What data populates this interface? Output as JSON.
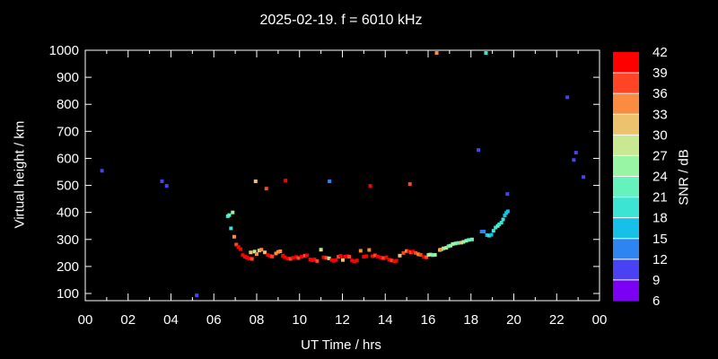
{
  "title": "2025-02-19. f = 6010 kHz",
  "colors": {
    "background": "#000000",
    "foreground": "#ffffff"
  },
  "axes": {
    "x": {
      "label": "UT Time / hrs",
      "tick_hours": [
        0,
        2,
        4,
        6,
        8,
        10,
        12,
        14,
        16,
        18,
        20,
        22,
        24
      ],
      "tick_labels": [
        "00",
        "02",
        "04",
        "06",
        "08",
        "10",
        "12",
        "14",
        "16",
        "18",
        "20",
        "22",
        "00"
      ],
      "minor_hours": [
        1,
        3,
        5,
        7,
        9,
        11,
        13,
        15,
        17,
        19,
        21,
        23
      ],
      "range_hours": [
        0,
        24
      ]
    },
    "y": {
      "label": "Virtual height / km",
      "tick_values": [
        100,
        200,
        300,
        400,
        500,
        600,
        700,
        800,
        900,
        1000
      ],
      "tick_labels": [
        "100",
        "200",
        "300",
        "400",
        "500",
        "600",
        "700",
        "800",
        "900",
        "1000"
      ],
      "range_km": [
        75,
        1000
      ]
    }
  },
  "colorbar": {
    "label": "SNR / dB",
    "min": 6,
    "max": 42,
    "step": 3,
    "tick_labels_top_to_bottom": [
      "42",
      "39",
      "36",
      "33",
      "30",
      "27",
      "24",
      "21",
      "18",
      "15",
      "12",
      "9",
      "6"
    ],
    "colors_bottom_to_top": [
      "#7c00f4",
      "#4a42f2",
      "#2e85f2",
      "#17c0e8",
      "#3ce5d3",
      "#65f2bd",
      "#97f5a3",
      "#c8e992",
      "#edc26c",
      "#fb8c3f",
      "#ff4526",
      "#ff0000"
    ]
  },
  "chart_data": {
    "type": "scatter",
    "title": "2025-02-19. f = 6010 kHz",
    "xlabel": "UT Time / hrs",
    "ylabel": "Virtual height / km",
    "xlim_hours": [
      0,
      24
    ],
    "ylim_km": [
      75,
      1000
    ],
    "color_by": "snr_db",
    "snr_color_min": 6,
    "snr_color_max": 42,
    "legend_position": "right-colorbar",
    "grid": false,
    "points_time_height_snr": [
      [
        0.78,
        554,
        10
      ],
      [
        3.58,
        515,
        10
      ],
      [
        3.8,
        498,
        10
      ],
      [
        5.2,
        93,
        10
      ],
      [
        7.95,
        515,
        31
      ],
      [
        8.45,
        488,
        38
      ],
      [
        9.35,
        518,
        41
      ],
      [
        11.4,
        515,
        13
      ],
      [
        13.3,
        498,
        41
      ],
      [
        15.15,
        505,
        38
      ],
      [
        16.4,
        990,
        34
      ],
      [
        18.7,
        990,
        19
      ],
      [
        18.35,
        631,
        10
      ],
      [
        19.7,
        468,
        10
      ],
      [
        22.5,
        826,
        10
      ],
      [
        22.8,
        594,
        10
      ],
      [
        22.9,
        621,
        10
      ],
      [
        23.25,
        531,
        10
      ],
      [
        6.65,
        386,
        19
      ],
      [
        6.72,
        390,
        22
      ],
      [
        6.88,
        400,
        25
      ],
      [
        6.8,
        341,
        19
      ],
      [
        6.95,
        310,
        34
      ],
      [
        7.05,
        281,
        38
      ],
      [
        7.15,
        272,
        41
      ],
      [
        7.25,
        264,
        41
      ],
      [
        7.35,
        242,
        41
      ],
      [
        7.45,
        236,
        41
      ],
      [
        7.55,
        233,
        41
      ],
      [
        7.65,
        229,
        41
      ],
      [
        7.72,
        252,
        31
      ],
      [
        7.78,
        228,
        38
      ],
      [
        7.9,
        255,
        28
      ],
      [
        8.0,
        246,
        34
      ],
      [
        8.12,
        259,
        31
      ],
      [
        8.22,
        262,
        34
      ],
      [
        8.38,
        252,
        31
      ],
      [
        8.52,
        242,
        41
      ],
      [
        8.62,
        239,
        41
      ],
      [
        8.72,
        237,
        38
      ],
      [
        8.9,
        248,
        34
      ],
      [
        9.0,
        254,
        34
      ],
      [
        9.1,
        256,
        34
      ],
      [
        9.22,
        240,
        41
      ],
      [
        9.32,
        234,
        41
      ],
      [
        9.45,
        229,
        41
      ],
      [
        9.58,
        228,
        38
      ],
      [
        9.7,
        232,
        41
      ],
      [
        9.85,
        235,
        41
      ],
      [
        9.95,
        231,
        38
      ],
      [
        10.1,
        236,
        41
      ],
      [
        10.25,
        240,
        38
      ],
      [
        10.35,
        241,
        41
      ],
      [
        10.5,
        226,
        41
      ],
      [
        10.6,
        223,
        41
      ],
      [
        10.7,
        226,
        41
      ],
      [
        10.82,
        220,
        38
      ],
      [
        11.0,
        262,
        28
      ],
      [
        11.12,
        234,
        41
      ],
      [
        11.25,
        232,
        38
      ],
      [
        11.38,
        230,
        25
      ],
      [
        11.5,
        224,
        41
      ],
      [
        11.6,
        221,
        41
      ],
      [
        11.7,
        224,
        41
      ],
      [
        11.82,
        236,
        38
      ],
      [
        11.92,
        239,
        41
      ],
      [
        12.02,
        224,
        31
      ],
      [
        12.12,
        236,
        41
      ],
      [
        12.22,
        238,
        41
      ],
      [
        12.32,
        236,
        38
      ],
      [
        12.45,
        222,
        41
      ],
      [
        12.55,
        219,
        41
      ],
      [
        12.68,
        222,
        41
      ],
      [
        12.85,
        258,
        34
      ],
      [
        13.0,
        236,
        41
      ],
      [
        13.12,
        238,
        41
      ],
      [
        13.25,
        261,
        34
      ],
      [
        13.4,
        238,
        41
      ],
      [
        13.52,
        241,
        38
      ],
      [
        13.65,
        237,
        41
      ],
      [
        13.8,
        233,
        41
      ],
      [
        13.92,
        231,
        38
      ],
      [
        14.05,
        234,
        41
      ],
      [
        14.18,
        225,
        41
      ],
      [
        14.3,
        222,
        38
      ],
      [
        14.42,
        219,
        41
      ],
      [
        14.52,
        221,
        41
      ],
      [
        14.68,
        240,
        31
      ],
      [
        14.85,
        250,
        38
      ],
      [
        15.0,
        257,
        34
      ],
      [
        15.1,
        255,
        41
      ],
      [
        15.2,
        252,
        38
      ],
      [
        15.3,
        255,
        41
      ],
      [
        15.42,
        250,
        38
      ],
      [
        15.55,
        245,
        34
      ],
      [
        15.65,
        243,
        38
      ],
      [
        15.8,
        235,
        41
      ],
      [
        15.92,
        234,
        38
      ],
      [
        16.02,
        243,
        25
      ],
      [
        16.12,
        244,
        28
      ],
      [
        16.22,
        242,
        22
      ],
      [
        16.32,
        243,
        25
      ],
      [
        16.55,
        261,
        31
      ],
      [
        16.62,
        263,
        34
      ],
      [
        16.72,
        267,
        25
      ],
      [
        16.85,
        269,
        28
      ],
      [
        16.95,
        275,
        22
      ],
      [
        17.05,
        277,
        25
      ],
      [
        17.15,
        283,
        25
      ],
      [
        17.28,
        285,
        25
      ],
      [
        17.4,
        287,
        22
      ],
      [
        17.55,
        288,
        31
      ],
      [
        17.65,
        291,
        25
      ],
      [
        17.78,
        295,
        25
      ],
      [
        17.9,
        298,
        22
      ],
      [
        18.05,
        300,
        22
      ],
      [
        18.5,
        329,
        13
      ],
      [
        18.6,
        329,
        13
      ],
      [
        18.75,
        316,
        16
      ],
      [
        18.85,
        314,
        19
      ],
      [
        18.95,
        317,
        16
      ],
      [
        19.05,
        332,
        19
      ],
      [
        19.15,
        344,
        19
      ],
      [
        19.25,
        350,
        22
      ],
      [
        19.32,
        356,
        19
      ],
      [
        19.42,
        362,
        19
      ],
      [
        19.5,
        374,
        19
      ],
      [
        19.58,
        389,
        16
      ],
      [
        19.65,
        398,
        16
      ],
      [
        19.72,
        404,
        16
      ]
    ]
  }
}
